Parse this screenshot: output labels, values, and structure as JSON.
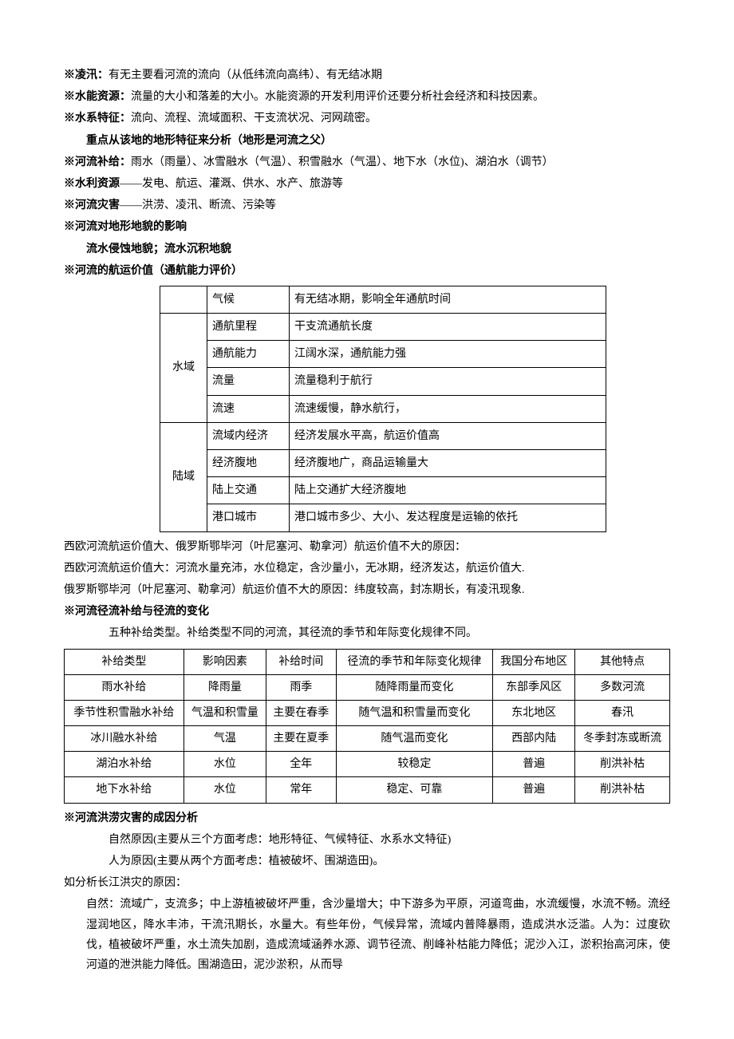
{
  "lines": {
    "l1_label": "※凌汛：",
    "l1_text": "有无主要看河流的流向（从低纬流向高纬）、有无结冰期",
    "l2_label": "※水能资源：",
    "l2_text": "流量的大小和落差的大小。水能资源的开发利用评价还要分析社会经济和科技因素。",
    "l3_label": "※水系特征：",
    "l3_text": "流向、流程、流域面积、干支流状况、河网疏密。",
    "l4": "重点从该地的地形特征来分析（地形是河流之父）",
    "l5_label": "※河流补给：",
    "l5_text": "雨水（雨量）、冰雪融水（气温）、积雪融水（气温）、地下水（水位)、湖泊水（调节）",
    "l6_label": "※水利资源",
    "l6_text": "——发电、航运、灌溉、供水、水产、旅游等",
    "l7_label": "※河流灾害",
    "l7_text": "——洪涝、凌汛、断流、污染等",
    "l8": "※河流对地形地貌的影响",
    "l9": "流水侵蚀地貌；流水沉积地貌",
    "l10": "※河流的航运价值（通航能力评价）"
  },
  "nav_table": {
    "row1": {
      "c1": "",
      "c2": "气候",
      "c3": "有无结冰期，影响全年通航时间"
    },
    "water_label": "水域",
    "row2": {
      "c2": "通航里程",
      "c3": "干支流通航长度"
    },
    "row3": {
      "c2": "通航能力",
      "c3": "江阔水深，通航能力强"
    },
    "row4": {
      "c2": "流量",
      "c3": "流量稳利于航行"
    },
    "row5": {
      "c2": "流速",
      "c3": "流速缓慢，静水航行，"
    },
    "land_label": "陆域",
    "row6": {
      "c2": "流域内经济",
      "c3": "经济发展水平高，航运价值高"
    },
    "row7": {
      "c2": "经济腹地",
      "c3": "经济腹地广，商品运输量大"
    },
    "row8": {
      "c2": "陆上交通",
      "c3": "陆上交通扩大经济腹地"
    },
    "row9": {
      "c2": "港口城市",
      "c3": "港口城市多少、大小、发达程度是运输的依托"
    }
  },
  "mid": {
    "m1": "西欧河流航运价值大、俄罗斯鄂毕河（叶尼塞河、勒拿河）航运价值不大的原因：",
    "m2": "西欧河流航运价值大：河流水量充沛，水位稳定，含沙量小，无冰期，经济发达，航运价值大.",
    "m3": "俄罗斯鄂毕河（叶尼塞河、勒拿河）航运价值不大的原因：纬度较高，封冻期长，有凌汛现象.",
    "m4": "※河流径流补给与径流的变化",
    "m5": "五种补给类型。补给类型不同的河流，其径流的季节和年际变化规律不同。"
  },
  "supply_table": {
    "headers": [
      "补给类型",
      "影响因素",
      "补给时间",
      "径流的季节和年际变化规律",
      "我国分布地区",
      "其他特点"
    ],
    "rows": [
      [
        "雨水补给",
        "降雨量",
        "雨季",
        "随降雨量而变化",
        "东部季风区",
        "多数河流"
      ],
      [
        "季节性积雪融水补给",
        "气温和积雪量",
        "主要在春季",
        "随气温和积雪量而变化",
        "东北地区",
        "春汛"
      ],
      [
        "冰川融水补给",
        "气温",
        "主要在夏季",
        "随气温而变化",
        "西部内陆",
        "冬季封冻或断流"
      ],
      [
        "湖泊水补给",
        "水位",
        "全年",
        "较稳定",
        "普遍",
        "削洪补枯"
      ],
      [
        "地下水补给",
        "水位",
        "常年",
        "稳定、可靠",
        "普遍",
        "削洪补枯"
      ]
    ]
  },
  "flood": {
    "f1": "※河流洪涝灾害的成因分析",
    "f2": "自然原因(主要从三个方面考虑：地形特征、气候特征、水系水文特征)",
    "f3": "人为原因(主要从两个方面考虑：植被破坏、围湖造田)。",
    "f4": "如分析长江洪灾的原因：",
    "f5": "自然：流域广，支流多；中上游植被破坏严重，含沙量增大；中下游多为平原，河道弯曲，水流缓慢，水流不畅。流经湿润地区，降水丰沛，干流汛期长，水量大。有些年份，气候异常，流域内普降暴雨，造成洪水泛滥。人为：过度砍伐，植被破坏严重，水土流失加剧，造成流域涵养水源、调节径流、削峰补枯能力降低；泥沙入江，淤积抬高河床，使河道的泄洪能力降低。围湖造田，泥沙淤积，从而导"
  }
}
